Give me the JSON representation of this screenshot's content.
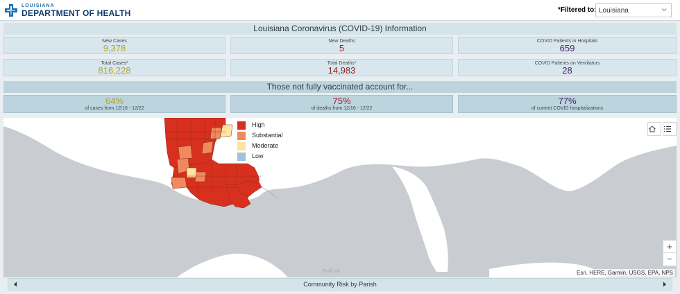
{
  "header": {
    "logo_small": "LOUISIANA",
    "logo_big": "DEPARTMENT OF HEALTH",
    "filter_label": "*Filtered to:",
    "filter_value": "Louisiana"
  },
  "info_title": "Louisiana Coronavirus (COVID-19) Information",
  "stats": {
    "new_cases": {
      "label": "New Cases",
      "value": "9,378"
    },
    "new_deaths": {
      "label": "New Deaths",
      "value": "5"
    },
    "hospitalized": {
      "label": "COVID Patients in Hospitals",
      "value": "659"
    },
    "total_cases": {
      "label": "Total Cases*",
      "value": "816,228"
    },
    "total_deaths": {
      "label": "Total Deaths*",
      "value": "14,983"
    },
    "ventilators": {
      "label": "COVID Patients on Ventilators",
      "value": "28"
    }
  },
  "vax_banner": "Those not fully vaccinated account for...",
  "vax_stats": {
    "cases": {
      "value": "64%",
      "label": "of cases from 12/16 - 12/22"
    },
    "deaths": {
      "value": "75%",
      "label": "of deaths from 12/16 - 12/22"
    },
    "hospitalizations": {
      "value": "77%",
      "label": "of current COVID hospitalizations"
    }
  },
  "map": {
    "legend": [
      {
        "label": "High",
        "color": "#d7301f"
      },
      {
        "label": "Substantial",
        "color": "#f08a5d"
      },
      {
        "label": "Moderate",
        "color": "#fce5a0"
      },
      {
        "label": "Low",
        "color": "#9ec3dc"
      }
    ],
    "home_icon": "home-icon",
    "list_icon": "list-icon",
    "zoom_in": "+",
    "zoom_out": "−",
    "gulf_label": "Gulf of",
    "attribution": "Esri, HERE, Garmin, USGS, EPA, NPS"
  },
  "footer": {
    "title": "Community Risk by Parish"
  },
  "colors": {
    "land": "#ffffff",
    "water": "#c9cdd1",
    "high": "#d7301f",
    "substantial": "#f08a5d",
    "moderate": "#fce5a0"
  }
}
